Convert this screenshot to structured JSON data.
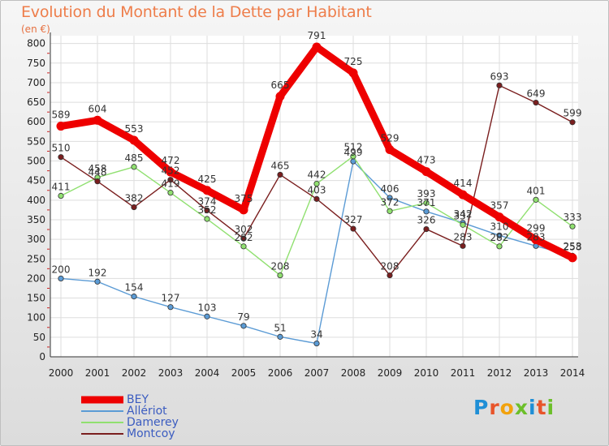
{
  "header": {
    "title": "Evolution du Montant de la Dette par Habitant",
    "unit": "(en €)"
  },
  "logo": {
    "text": "Proxiti",
    "letter_colors": [
      "#1f8fd6",
      "#e8542a",
      "#f2a20d",
      "#6cbf2a",
      "#1f8fd6",
      "#e8542a",
      "#6cbf2a"
    ]
  },
  "chart_data": {
    "type": "line",
    "title": "Evolution du Montant de la Dette par Habitant",
    "ylabel": "(en €)",
    "xlabel": "",
    "x": [
      "2000",
      "2001",
      "2002",
      "2003",
      "2004",
      "2005",
      "2006",
      "2007",
      "2008",
      "2009",
      "2010",
      "2011",
      "2012",
      "2013",
      "2014"
    ],
    "y_ticks": [
      "0",
      "50",
      "100",
      "150",
      "200",
      "250",
      "300",
      "350",
      "400",
      "450",
      "500",
      "550",
      "600",
      "650",
      "700",
      "750",
      "800"
    ],
    "ylim": [
      0,
      820
    ],
    "grid": true,
    "legend_position": "bottom-left",
    "series": [
      {
        "name": "BEY",
        "color": "#ee0000",
        "thick": true,
        "values": [
          589,
          604,
          553,
          472,
          425,
          375,
          665,
          791,
          725,
          529,
          473,
          414,
          357,
          299,
          253
        ]
      },
      {
        "name": "Allériot",
        "color": "#5b9bd5",
        "thick": false,
        "values": [
          200,
          192,
          154,
          127,
          103,
          79,
          51,
          34,
          499,
          406,
          371,
          342,
          310,
          283,
          258
        ]
      },
      {
        "name": "Damerey",
        "color": "#90e070",
        "thick": false,
        "values": [
          411,
          458,
          485,
          419,
          352,
          282,
          208,
          442,
          512,
          372,
          393,
          337,
          282,
          401,
          333
        ]
      },
      {
        "name": "Montcoy",
        "color": "#7a1e1e",
        "thick": false,
        "values": [
          510,
          448,
          382,
          452,
          374,
          302,
          465,
          403,
          327,
          208,
          326,
          283,
          693,
          649,
          599
        ]
      }
    ]
  }
}
